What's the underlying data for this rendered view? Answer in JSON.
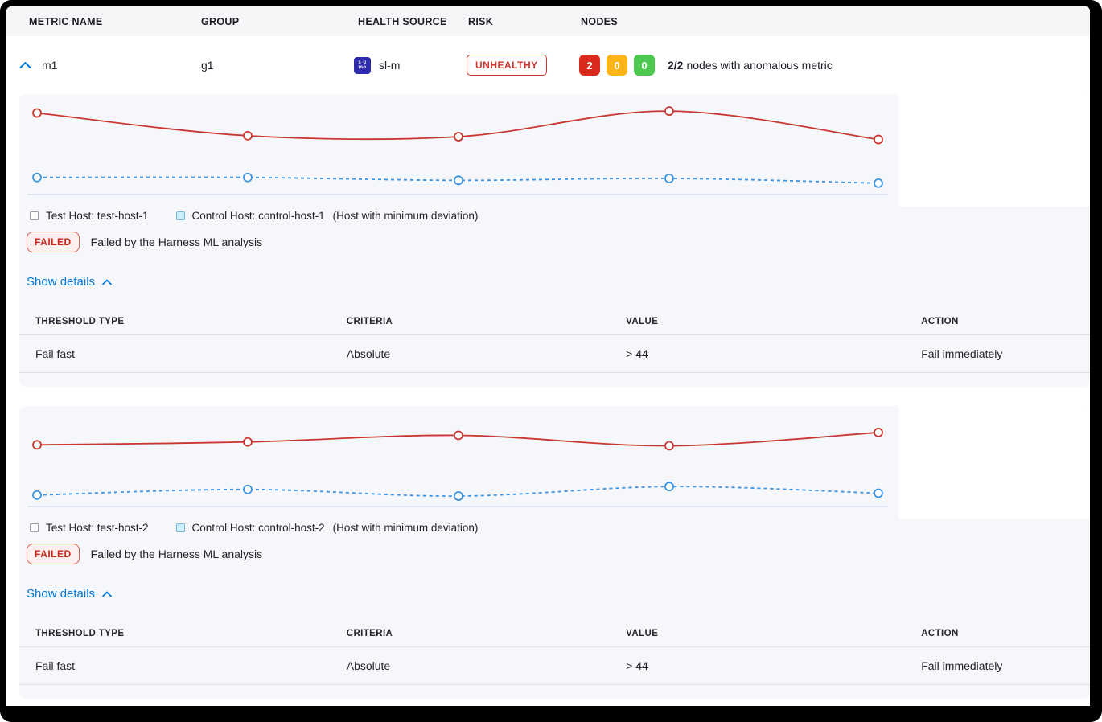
{
  "table_header": {
    "metric_name": "METRIC NAME",
    "group": "GROUP",
    "health_source": "HEALTH SOURCE",
    "risk": "RISK",
    "nodes": "NODES"
  },
  "metric_row": {
    "name": "m1",
    "group": "g1",
    "health_source_label": "sl-m",
    "health_source_icon_line1": "s u",
    "health_source_icon_line2": "mo",
    "risk_label": "UNHEALTHY",
    "node_counts": {
      "failed": "2",
      "warning": "0",
      "healthy": "0"
    },
    "nodes_summary_bold": "2/2",
    "nodes_summary_rest": "nodes with anomalous metric"
  },
  "panels": [
    {
      "legend": {
        "test": "Test Host: test-host-1",
        "control": "Control Host: control-host-1",
        "note": "(Host with minimum deviation)"
      },
      "status_badge": "FAILED",
      "status_text": "Failed by the Harness ML analysis",
      "show_details": "Show details",
      "threshold_table": {
        "headers": [
          "THRESHOLD TYPE",
          "CRITERIA",
          "VALUE",
          "ACTION"
        ],
        "rows": [
          [
            "Fail fast",
            "Absolute",
            "> 44",
            "Fail immediately"
          ]
        ]
      }
    },
    {
      "legend": {
        "test": "Test Host: test-host-2",
        "control": "Control Host: control-host-2",
        "note": "(Host with minimum deviation)"
      },
      "status_badge": "FAILED",
      "status_text": "Failed by the Harness ML analysis",
      "show_details": "Show details",
      "threshold_table": {
        "headers": [
          "THRESHOLD TYPE",
          "CRITERIA",
          "VALUE",
          "ACTION"
        ],
        "rows": [
          [
            "Fail fast",
            "Absolute",
            "> 44",
            "Fail immediately"
          ]
        ]
      }
    }
  ],
  "chart_data": [
    {
      "type": "line",
      "x": [
        1,
        2,
        3,
        4,
        5
      ],
      "series": [
        {
          "name": "test-host-1",
          "style": "solid",
          "color": "#c9372f",
          "values": [
            86,
            62,
            61,
            88,
            58
          ]
        },
        {
          "name": "control-host-1",
          "style": "dashed",
          "color": "#3d94e1",
          "values": [
            18,
            18,
            15,
            17,
            12
          ]
        }
      ],
      "ylim": [
        0,
        100
      ],
      "grid": false,
      "axes_labeled": false,
      "legend_position": "bottom"
    },
    {
      "type": "line",
      "x": [
        1,
        2,
        3,
        4,
        5
      ],
      "series": [
        {
          "name": "test-host-2",
          "style": "solid",
          "color": "#c9372f",
          "values": [
            65,
            68,
            75,
            64,
            78
          ]
        },
        {
          "name": "control-host-2",
          "style": "dashed",
          "color": "#3d94e1",
          "values": [
            12,
            18,
            11,
            21,
            14
          ]
        }
      ],
      "ylim": [
        0,
        100
      ],
      "grid": false,
      "axes_labeled": false,
      "legend_position": "bottom"
    }
  ],
  "colors": {
    "test_line": "#c9372f",
    "control_line": "#3d94e1",
    "axis_line": "#ccd2e6",
    "risk_red": "#d0342c",
    "node_failed": "#da291d",
    "node_warning": "#fcb519",
    "node_healthy": "#4dc952",
    "link_blue": "#0278d5",
    "panel_bg": "#f6f7fb"
  }
}
